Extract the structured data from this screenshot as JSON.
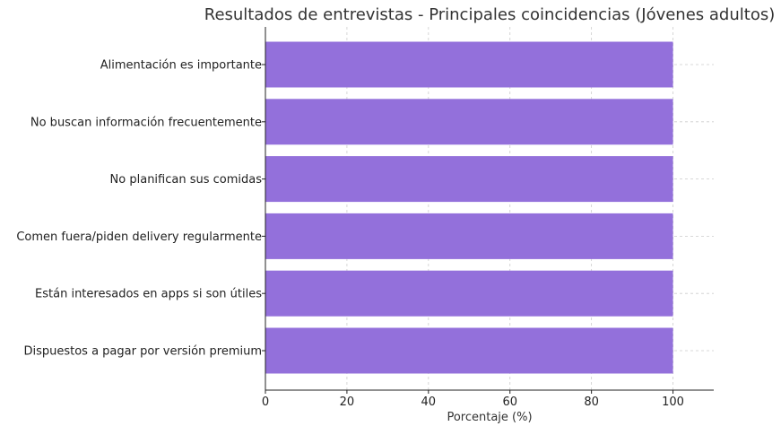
{
  "chart_data": {
    "type": "bar",
    "orientation": "horizontal",
    "title": "Resultados de entrevistas - Principales coincidencias (Jóvenes adultos)",
    "xlabel": "Porcentaje (%)",
    "ylabel": "",
    "xlim": [
      0,
      110
    ],
    "xticks": [
      0,
      20,
      40,
      60,
      80,
      100
    ],
    "grid": true,
    "categories": [
      "Alimentación es importante",
      "No buscan información frecuentemente",
      "No planifican sus comidas",
      "Comen fuera/piden delivery regularmente",
      "Están interesados en apps si son útiles",
      "Dispuestos a pagar por versión premium"
    ],
    "values": [
      100,
      100,
      100,
      100,
      100,
      100
    ],
    "bar_color": "#9370db"
  }
}
